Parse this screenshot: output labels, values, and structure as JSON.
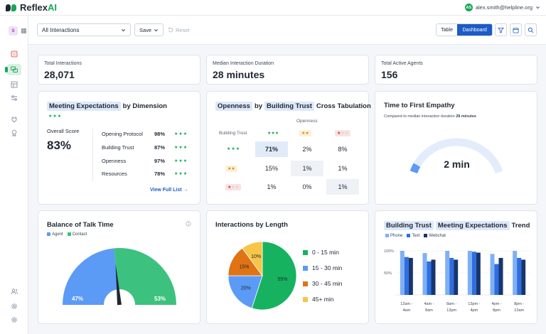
{
  "app": {
    "brand_main": "Reflex",
    "brand_ai": "AI",
    "user_email": "alex.smith@helpline.org",
    "user_initials": "AS"
  },
  "sidebar": {
    "app_badge": "S",
    "items": [
      "home-icon",
      "conversations-icon",
      "table-icon",
      "settings-sliders-icon",
      "plug-icon",
      "award-icon",
      "users-icon",
      "gear-icon",
      "gear-alt-icon"
    ]
  },
  "toolbar": {
    "filter": "All Interactions",
    "save": "Save",
    "reset": "Reset",
    "view_table": "Table",
    "view_dashboard": "Dashboard"
  },
  "kpis": [
    {
      "label": "Total Interactions",
      "value": "28,071"
    },
    {
      "label": "Median Interaction Duration",
      "value": "28 minutes"
    },
    {
      "label": "Total Active Agents",
      "value": "156"
    }
  ],
  "meeting": {
    "title_hl": "Meeting Expectations",
    "title_rest": "by Dimension",
    "overall_label": "Overall Score",
    "overall_value": "83%",
    "rows": [
      {
        "name": "Opening Protocol",
        "pct": "98%"
      },
      {
        "name": "Building Trust",
        "pct": "87%"
      },
      {
        "name": "Openness",
        "pct": "97%"
      },
      {
        "name": "Resources",
        "pct": "78%"
      }
    ],
    "view_all": "View Full List"
  },
  "xtab": {
    "title_a": "Openness",
    "title_by": "by",
    "title_b": "Building Trust",
    "title_rest": "Cross Tabulation",
    "col_label": "Openness",
    "row_label": "Building Trust",
    "cells": [
      [
        "71%",
        "2%",
        "8%"
      ],
      [
        "15%",
        "1%",
        "1%"
      ],
      [
        "1%",
        "0%",
        "1%"
      ]
    ]
  },
  "empathy": {
    "title": "Time to First Empathy",
    "subtitle": "Compared to median interaction duration",
    "subtitle_bold": "28 minutes",
    "value": "2 min",
    "gauge_fraction": 0.07
  },
  "talk": {
    "title": "Balance of Talk Time",
    "legend": [
      "Agent",
      "Contact"
    ],
    "agent_pct": "47%",
    "contact_pct": "53%",
    "agent_value": 47,
    "contact_value": 53,
    "colors": {
      "agent": "#5b9bf5",
      "contact": "#3cc27e"
    }
  },
  "length": {
    "title": "Interactions by Length",
    "slices": [
      {
        "label": "0 - 15 min",
        "value": 55,
        "text": "55%",
        "color": "#17b25f"
      },
      {
        "label": "15 - 30 min",
        "value": 20,
        "text": "20%",
        "color": "#5b9bf5"
      },
      {
        "label": "30 - 45 min",
        "value": 15,
        "text": "15%",
        "color": "#e07314"
      },
      {
        "label": "45+ min",
        "value": 10,
        "text": "10%",
        "color": "#f7c548"
      }
    ]
  },
  "trend": {
    "title_a": "Building Trust",
    "title_b": "Meeting Expectations",
    "title_rest": "Trend",
    "legend": [
      "Phone",
      "Text",
      "Webchat"
    ],
    "y_ticks": [
      "100%",
      "50%"
    ],
    "categories": [
      [
        "12am -",
        "4am"
      ],
      [
        "4am -",
        "8am"
      ],
      [
        "8am -",
        "12pm"
      ],
      [
        "12pm -",
        "4pm"
      ],
      [
        "4pm -",
        "8pm"
      ],
      [
        "8pm -",
        "12am"
      ]
    ],
    "colors": [
      "#7fb0f4",
      "#2e6ee0",
      "#17356f"
    ]
  },
  "chart_data": [
    {
      "type": "bar",
      "title": "Building Trust Meeting Expectations Trend",
      "categories": [
        "12am - 4am",
        "4am - 8am",
        "8am - 12pm",
        "12pm - 4pm",
        "4pm - 8pm",
        "8pm - 12am"
      ],
      "series": [
        {
          "name": "Phone",
          "values": [
            100,
            95,
            100,
            100,
            93,
            100
          ]
        },
        {
          "name": "Text",
          "values": [
            86,
            76,
            84,
            98,
            70,
            84
          ]
        },
        {
          "name": "Webchat",
          "values": [
            84,
            80,
            80,
            96,
            84,
            80
          ]
        }
      ],
      "ylim": [
        0,
        100
      ]
    },
    {
      "type": "pie",
      "title": "Interactions by Length",
      "categories": [
        "0 - 15 min",
        "15 - 30 min",
        "30 - 45 min",
        "45+ min"
      ],
      "values": [
        55,
        20,
        15,
        10
      ]
    }
  ]
}
